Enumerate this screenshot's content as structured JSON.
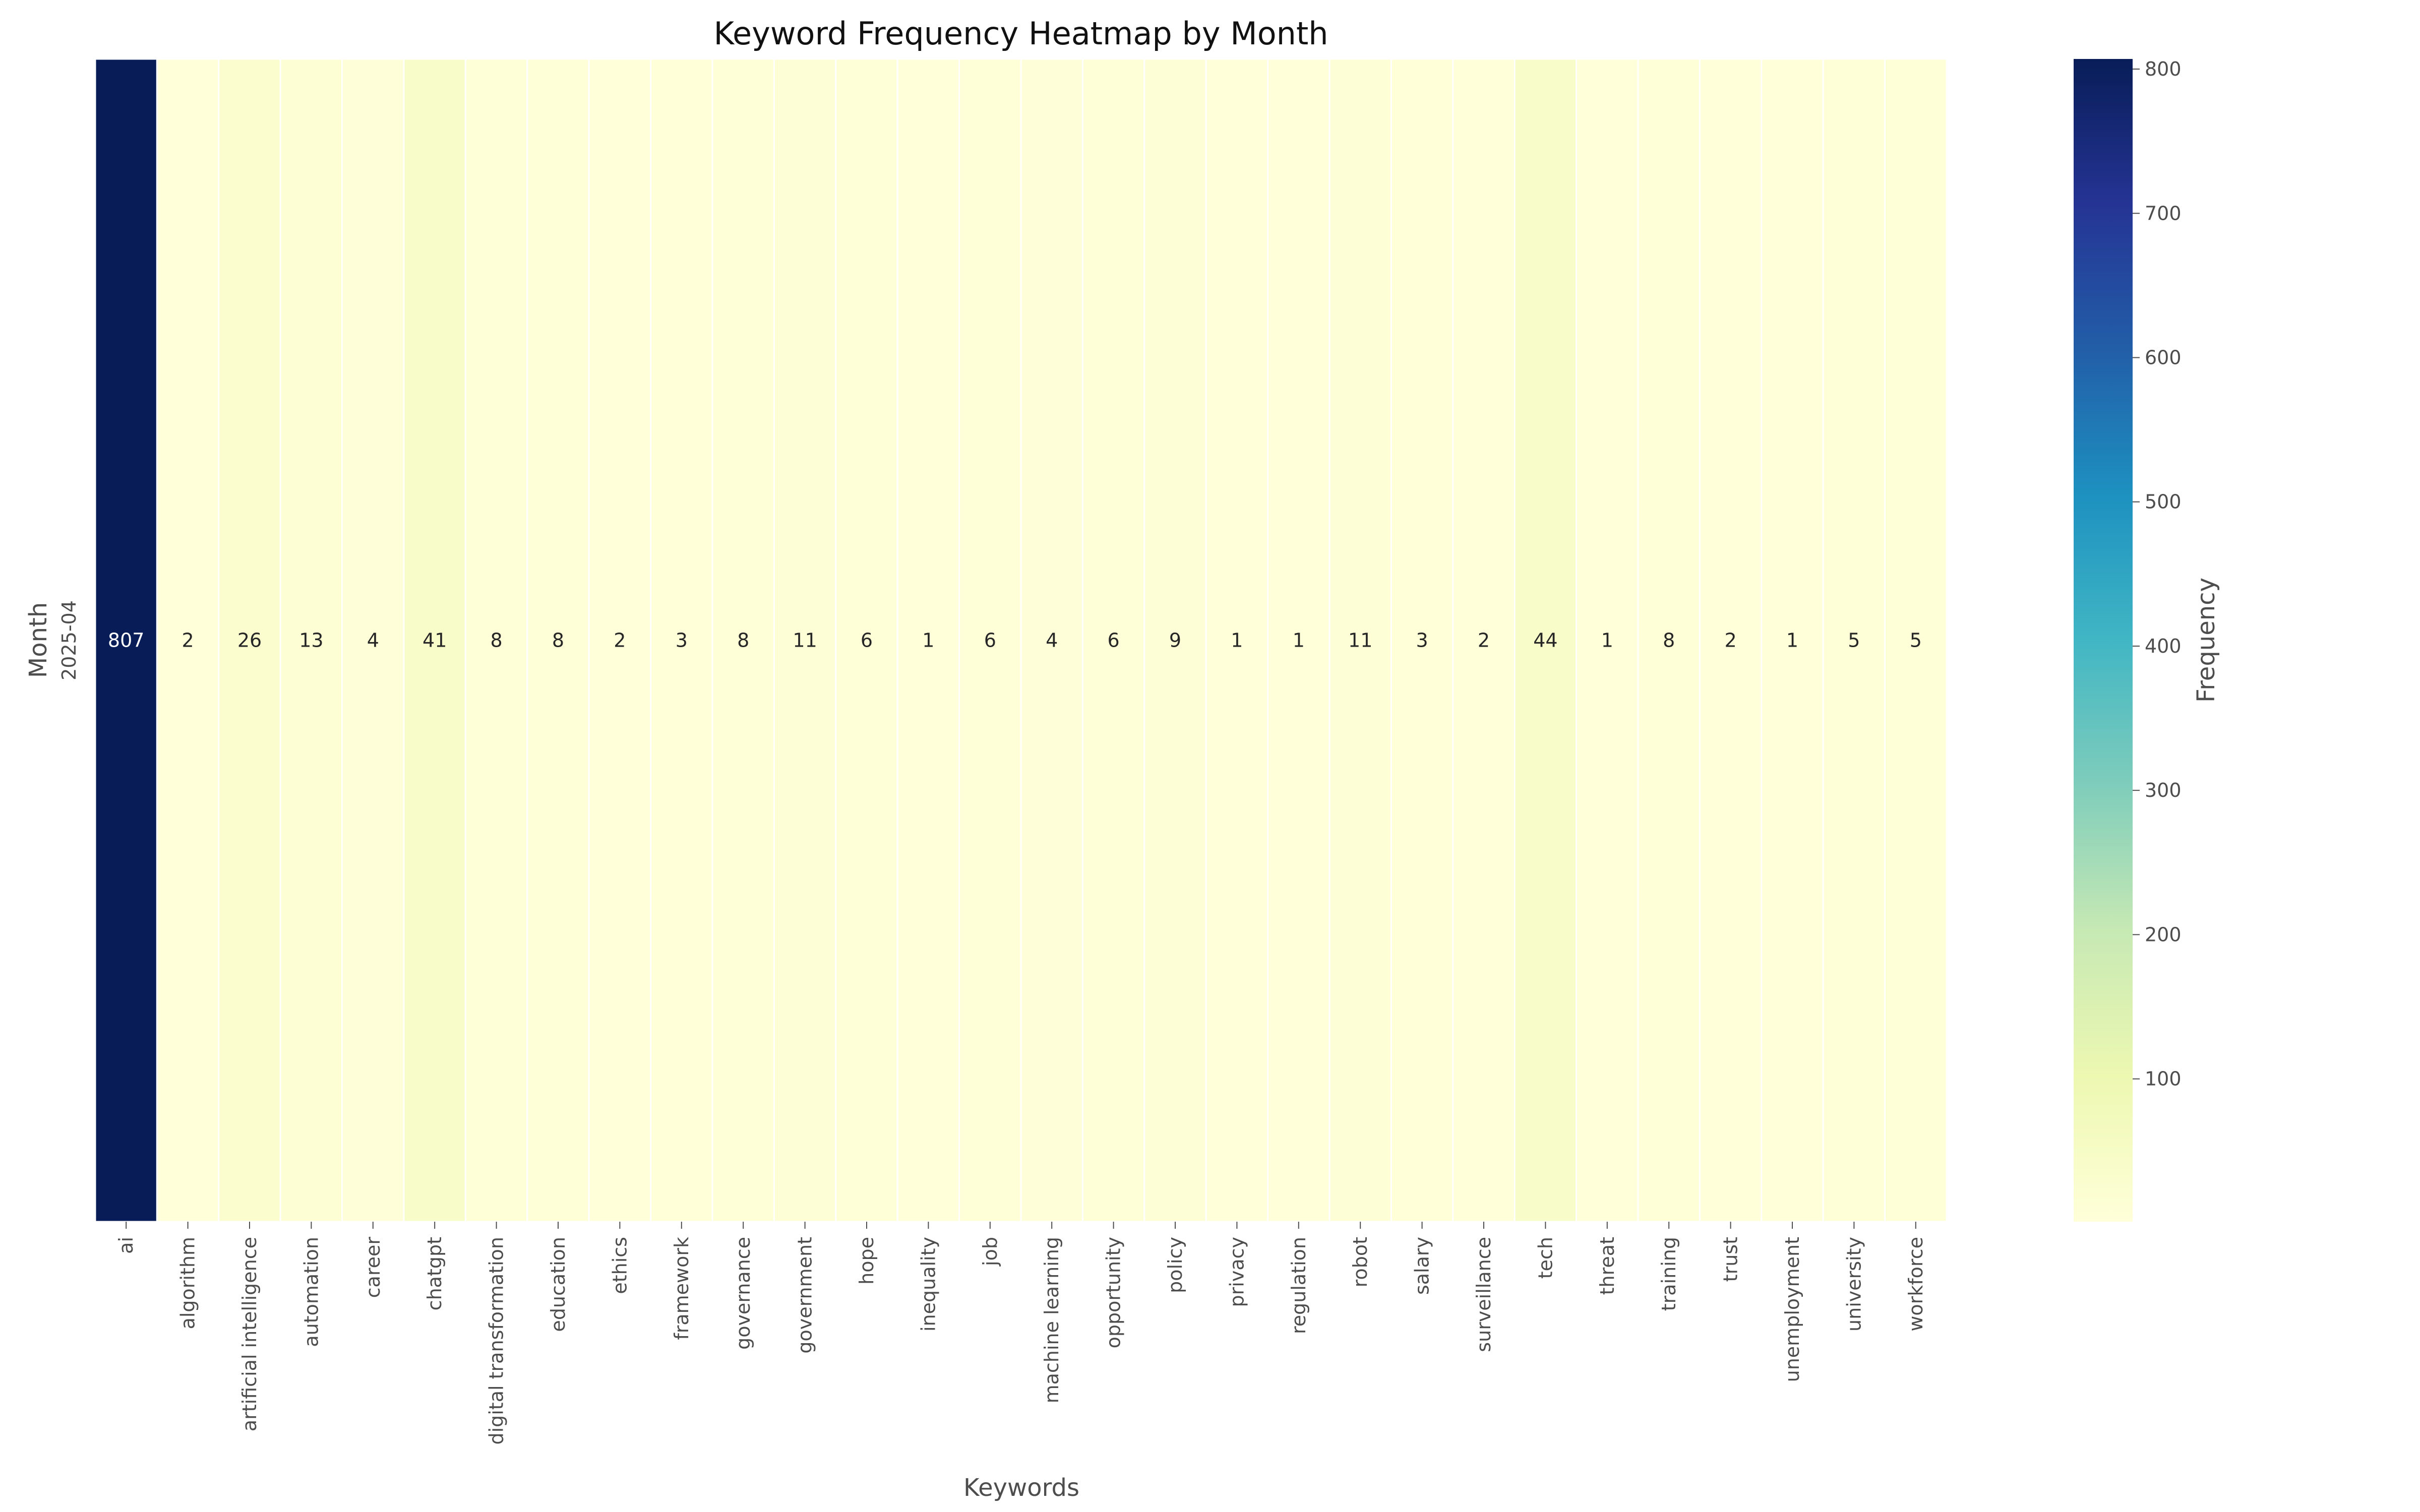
{
  "chart_data": {
    "type": "heatmap",
    "title": "Keyword Frequency Heatmap by Month",
    "xlabel": "Keywords",
    "ylabel": "Month",
    "rows": [
      "2025-04"
    ],
    "columns": [
      "ai",
      "algorithm",
      "artificial intelligence",
      "automation",
      "career",
      "chatgpt",
      "digital transformation",
      "education",
      "ethics",
      "framework",
      "governance",
      "government",
      "hope",
      "inequality",
      "job",
      "machine learning",
      "opportunity",
      "policy",
      "privacy",
      "regulation",
      "robot",
      "salary",
      "surveillance",
      "tech",
      "threat",
      "training",
      "trust",
      "unemployment",
      "university",
      "workforce"
    ],
    "values": [
      [
        807,
        2,
        26,
        13,
        4,
        41,
        8,
        8,
        2,
        3,
        8,
        11,
        6,
        1,
        6,
        4,
        6,
        9,
        1,
        1,
        11,
        3,
        2,
        44,
        1,
        8,
        2,
        1,
        5,
        5
      ]
    ],
    "annotations": true,
    "colormap": "YlGnBu",
    "colormap_stops": [
      "#ffffd9",
      "#edf8b1",
      "#c7e9b4",
      "#7fcdbb",
      "#41b6c4",
      "#1d91c0",
      "#225ea8",
      "#253494",
      "#081d58"
    ],
    "value_range": [
      1,
      807
    ],
    "colorbar": {
      "label": "Frequency",
      "ticks": [
        100,
        200,
        300,
        400,
        500,
        600,
        700,
        800
      ]
    },
    "grid": false
  }
}
